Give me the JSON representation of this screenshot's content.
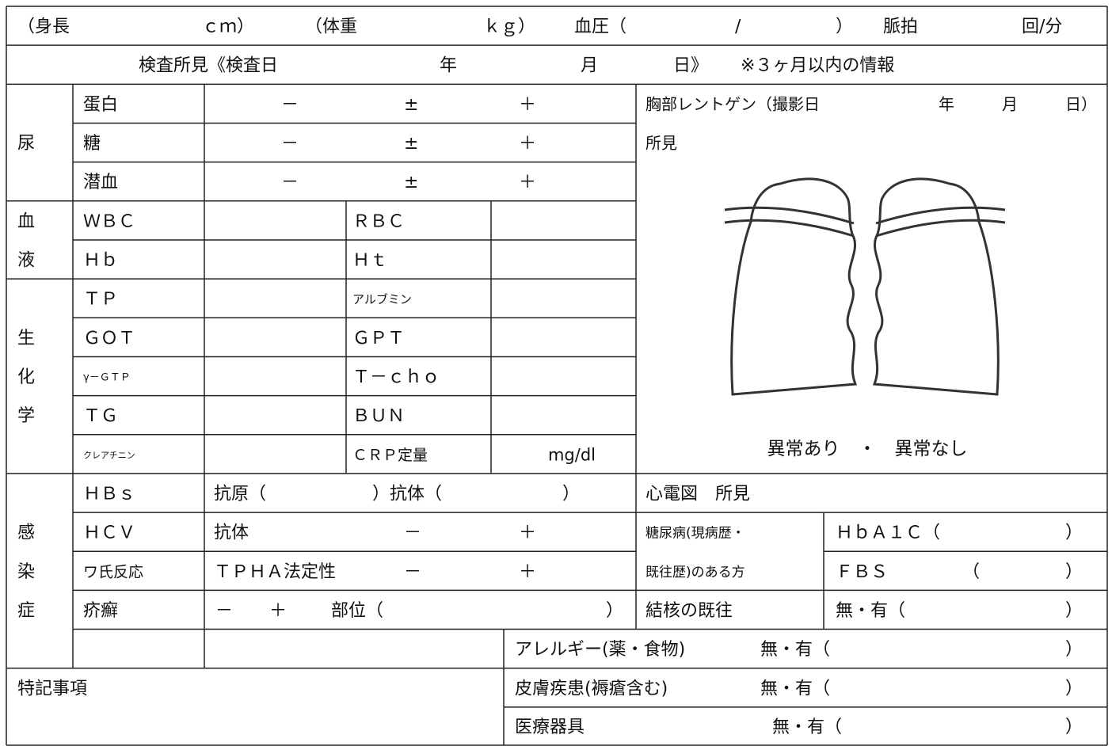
{
  "vitals": {
    "height_label": "（身長",
    "height_unit": "ｃｍ）",
    "weight_label": "（体重",
    "weight_unit": "ｋｇ）",
    "bp_label": "血圧（",
    "bp_sep": "/",
    "bp_close": "）",
    "pulse_label": "脈拍",
    "pulse_unit": "回/分"
  },
  "exam": {
    "title": "検査所見《検査日",
    "year": "年",
    "month": "月",
    "day": "日》",
    "note": "※３ヶ月以内の情報"
  },
  "urine": {
    "label": "尿",
    "rows": [
      {
        "item": "蛋白",
        "options": [
          "－",
          "±",
          "＋"
        ]
      },
      {
        "item": "糖",
        "options": [
          "－",
          "±",
          "＋"
        ]
      },
      {
        "item": "潜血",
        "options": [
          "－",
          "±",
          "＋"
        ]
      }
    ]
  },
  "blood": {
    "label": [
      "血",
      "液"
    ],
    "rows": [
      [
        "ＷＢＣ",
        "ＲＢＣ"
      ],
      [
        "Ｈｂ",
        "Ｈｔ"
      ]
    ]
  },
  "biochem": {
    "label": [
      "生",
      "化",
      "学"
    ],
    "rows": [
      [
        "ＴＰ",
        "アルブミン"
      ],
      [
        "ＧＯＴ",
        "ＧＰＴ"
      ],
      [
        "γ－ＧＴＰ",
        "Ｔ－ｃｈｏ"
      ],
      [
        "ＴＧ",
        "ＢＵＮ"
      ],
      [
        "クレアチニン",
        "ＣＲＰ定量"
      ]
    ],
    "crp_unit": "mg/dl"
  },
  "chest": {
    "title": "胸部レントゲン（撮影日",
    "year": "年",
    "month": "月",
    "day": "日）",
    "findings": "所見",
    "result": "異常あり　・　異常なし"
  },
  "infection": {
    "label": [
      "感",
      "染",
      "症"
    ],
    "hbs": {
      "item": "ＨＢｓ",
      "antigen": "抗原（",
      "antibody": "）抗体（",
      "close": "）"
    },
    "hcv": {
      "item": "ＨＣＶ",
      "antibody": "抗体",
      "options": [
        "－",
        "＋"
      ]
    },
    "wassermann": {
      "item": "ワ氏反応",
      "test": "ＴＰＨＡ法定性",
      "options": [
        "－",
        "＋"
      ]
    },
    "scabies": {
      "item": "疥癬",
      "options": [
        "－",
        "＋"
      ],
      "site": "部位（",
      "close": "）"
    }
  },
  "ecg": "心電図　所見",
  "diabetes": {
    "label": [
      "糖尿病(現病歴・",
      "既往歴)のある方"
    ],
    "hba1c": "ＨｂＡ１Ｃ（",
    "hba1c_close": "）",
    "fbs": "ＦＢＳ",
    "fbs_open": "（",
    "fbs_close": "）"
  },
  "tuberculosis": {
    "label": "結核の既往",
    "choice": "無・有（",
    "close": "）"
  },
  "allergy": {
    "label": "アレルギー(薬・食物)",
    "choice": "無・有（",
    "close": "）"
  },
  "remarks": "特記事項",
  "skin": {
    "label": "皮膚疾患(褥瘡含む)",
    "choice": "無・有（",
    "close": "）"
  },
  "device": {
    "label": "医療器具",
    "choice": "無・有（",
    "close": "）"
  }
}
